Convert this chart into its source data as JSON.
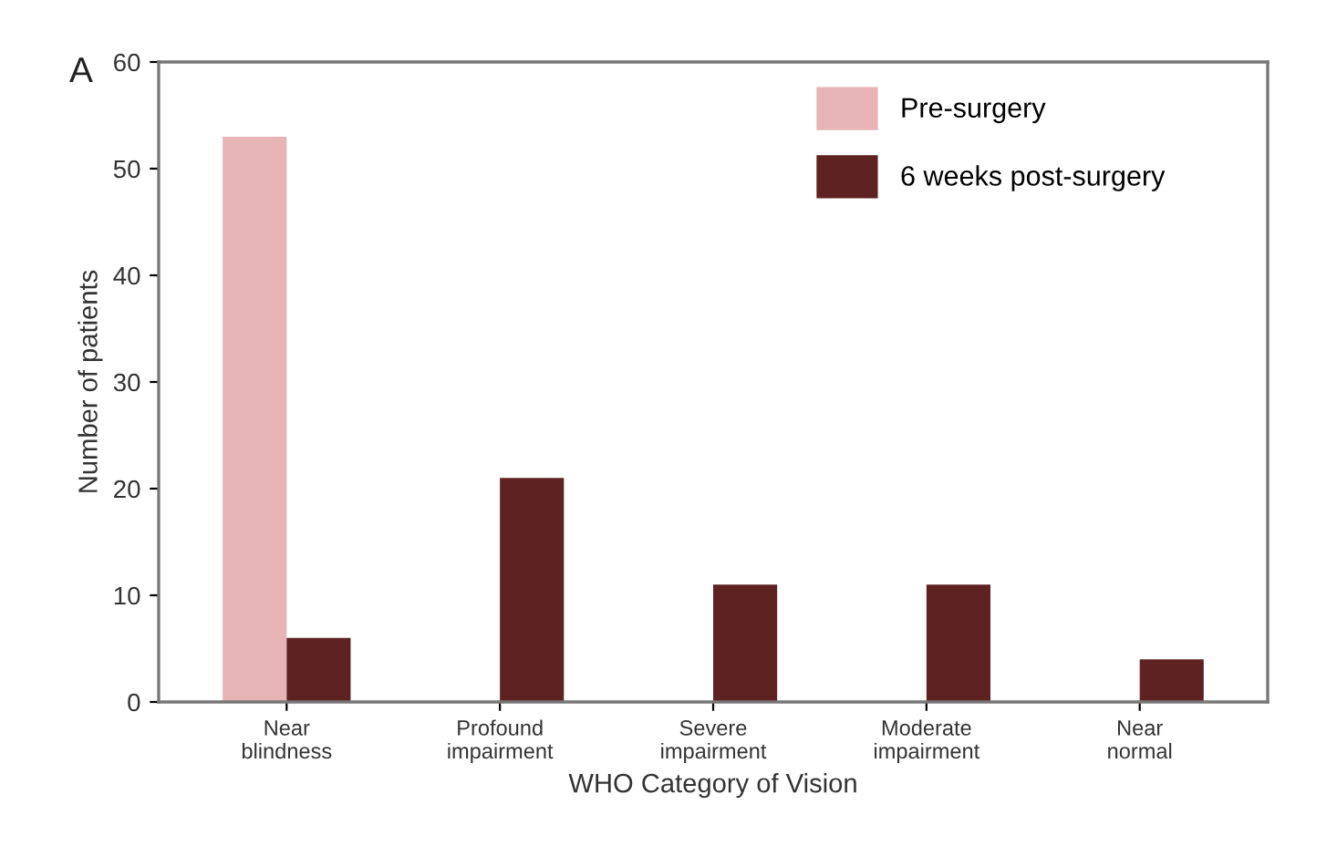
{
  "chart_data": {
    "type": "bar",
    "xlabel": "WHO Category of Vision",
    "ylabel": "Number of patients",
    "annotations": [
      "A"
    ],
    "categories": [
      "Near\nblindness",
      "Profound\nimpairment",
      "Severe\nimpairment",
      "Moderate\nimpairment",
      "Near\nnormal"
    ],
    "series": [
      {
        "name": "Pre-surgery",
        "color": "#e6b4b4",
        "values": [
          53,
          0,
          0,
          0,
          0
        ]
      },
      {
        "name": "6 weeks post-surgery",
        "color": "#5f2222",
        "values": [
          6,
          21,
          11,
          11,
          4
        ]
      }
    ],
    "ylim": [
      0,
      60
    ],
    "yticks": [
      0,
      10,
      20,
      30,
      40,
      50,
      60
    ],
    "grid": false,
    "legend": "top right"
  }
}
